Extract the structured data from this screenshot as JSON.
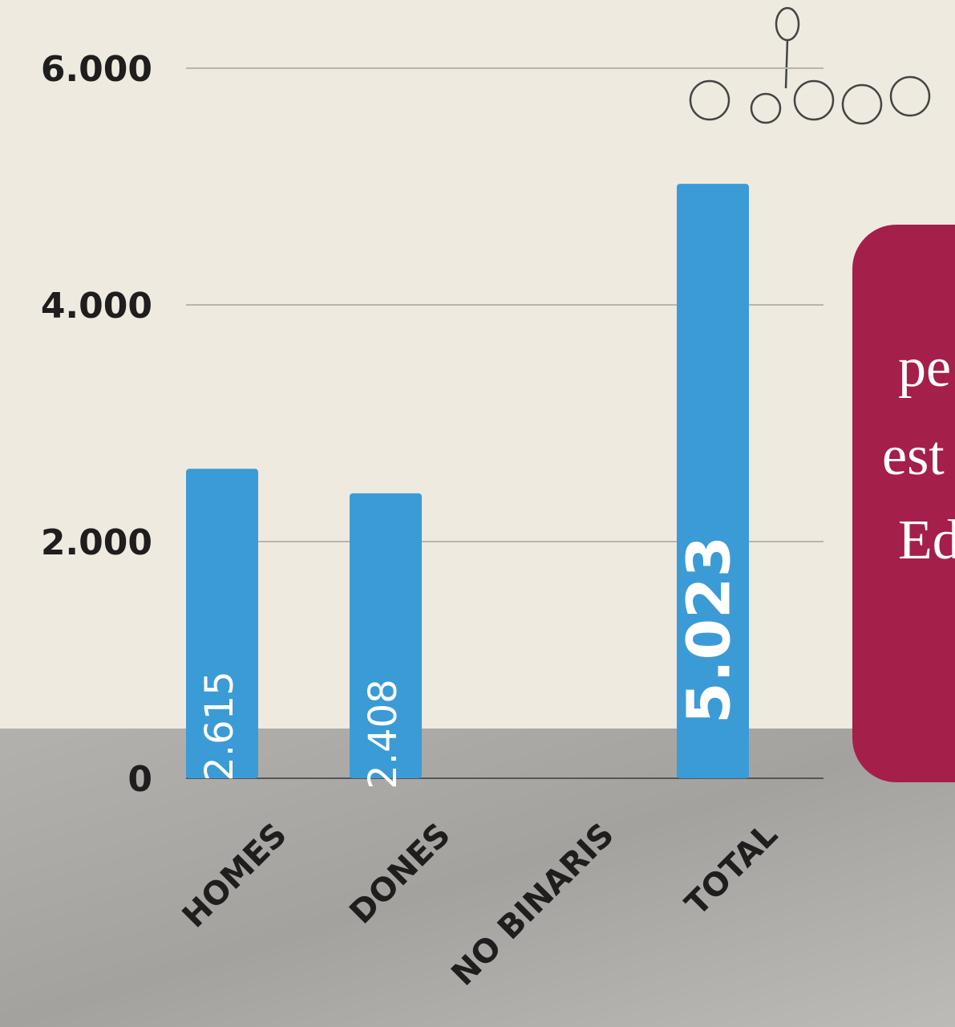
{
  "chart_data": {
    "type": "bar",
    "categories": [
      "HOMES",
      "DONES",
      "NO BINARIS",
      "TOTAL"
    ],
    "values": [
      2615,
      2408,
      null,
      5023
    ],
    "value_labels": [
      "2.615",
      "2.408",
      null,
      "5.023"
    ],
    "color": "#3b9bd6",
    "ylim": [
      0,
      6000
    ],
    "yticks": [
      0,
      {
        "value": 2000,
        "label": "2.000"
      },
      {
        "value": 4000,
        "label": "4.000"
      },
      {
        "value": 6000,
        "label": "6.000"
      }
    ],
    "grid": true,
    "annotations": [
      "pe",
      "est",
      "Ed"
    ]
  }
}
